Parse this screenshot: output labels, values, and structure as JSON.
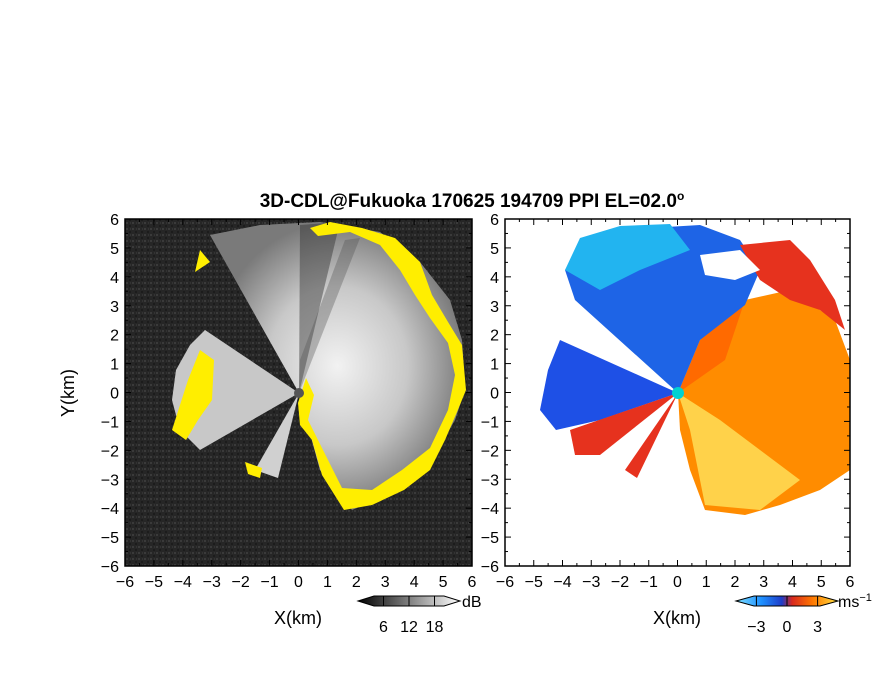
{
  "title_prefix": "3D-CDL@Fukuoka 170625 194709 PPI EL=02.0",
  "title_degree": "o",
  "chart_data": [
    {
      "type": "heatmap",
      "panel": "left",
      "field": "SNR (gray) with yellow echo mask",
      "xlabel": "X(km)",
      "ylabel": "Y(km)",
      "xlim": [
        -6,
        6
      ],
      "ylim": [
        -6,
        6
      ],
      "x_ticks": [
        "−6",
        "−5",
        "−4",
        "−3",
        "−2",
        "−1",
        "0",
        "1",
        "2",
        "3",
        "4",
        "5",
        "6"
      ],
      "y_ticks": [
        "6",
        "5",
        "4",
        "3",
        "2",
        "1",
        "0",
        "−1",
        "−2",
        "−3",
        "−4",
        "−5",
        "−6"
      ],
      "colorbar": {
        "unit": "dB",
        "ticks": [
          "6",
          "12",
          "18"
        ],
        "range": [
          0,
          24
        ]
      },
      "colors": {
        "background": "#2b2b2b",
        "echo_light": "#d8d8d8",
        "echo_dark": "#555555",
        "mask": "#ffee00"
      }
    },
    {
      "type": "heatmap",
      "panel": "right",
      "field": "Doppler velocity",
      "xlabel": "X(km)",
      "xlim": [
        -6,
        6
      ],
      "ylim": [
        -6,
        6
      ],
      "x_ticks": [
        "−6",
        "−5",
        "−4",
        "−3",
        "−2",
        "−1",
        "0",
        "1",
        "2",
        "3",
        "4",
        "5",
        "6"
      ],
      "y_ticks": [
        "6",
        "5",
        "4",
        "3",
        "2",
        "1",
        "0",
        "−1",
        "−2",
        "−3",
        "−4",
        "−5",
        "−6"
      ],
      "colorbar": {
        "unit_base": "ms",
        "unit_exp": "−1",
        "ticks": [
          "−3",
          "0",
          "3"
        ],
        "range": [
          -5,
          5
        ]
      },
      "colors": {
        "cyan": "#22b4f0",
        "blue": "#1e50e6",
        "red": "#e6321e",
        "orange": "#ff8c00",
        "yellow": "#ffd24a",
        "radar": "#00d2d2"
      }
    }
  ]
}
